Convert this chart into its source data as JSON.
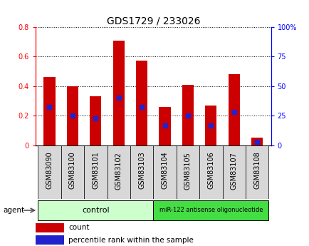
{
  "title": "GDS1729 / 233026",
  "samples": [
    "GSM83090",
    "GSM83100",
    "GSM83101",
    "GSM83102",
    "GSM83103",
    "GSM83104",
    "GSM83105",
    "GSM83106",
    "GSM83107",
    "GSM83108"
  ],
  "count_values": [
    0.46,
    0.4,
    0.33,
    0.71,
    0.575,
    0.26,
    0.41,
    0.27,
    0.48,
    0.05
  ],
  "percentile_values": [
    0.26,
    0.2,
    0.18,
    0.32,
    0.26,
    0.135,
    0.2,
    0.135,
    0.225,
    0.02
  ],
  "left_ylim": [
    0,
    0.8
  ],
  "right_ylim": [
    0,
    100
  ],
  "left_yticks": [
    0,
    0.2,
    0.4,
    0.6,
    0.8
  ],
  "right_yticks": [
    0,
    25,
    50,
    75,
    100
  ],
  "left_yticklabels": [
    "0",
    "0.2",
    "0.4",
    "0.6",
    "0.8"
  ],
  "right_yticklabels": [
    "0",
    "25",
    "50",
    "75",
    "100%"
  ],
  "bar_color": "#cc0000",
  "marker_color": "#2222cc",
  "grid_color": "#000000",
  "n_control": 5,
  "n_treatment": 5,
  "control_label": "control",
  "treatment_label": "miR-122 antisense oligonucleotide",
  "control_color": "#ccffcc",
  "treatment_color": "#44dd44",
  "agent_label": "agent",
  "legend_count": "count",
  "legend_percentile": "percentile rank within the sample",
  "bar_width": 0.5,
  "marker_size": 5,
  "tick_label_fontsize": 7,
  "title_fontsize": 10
}
